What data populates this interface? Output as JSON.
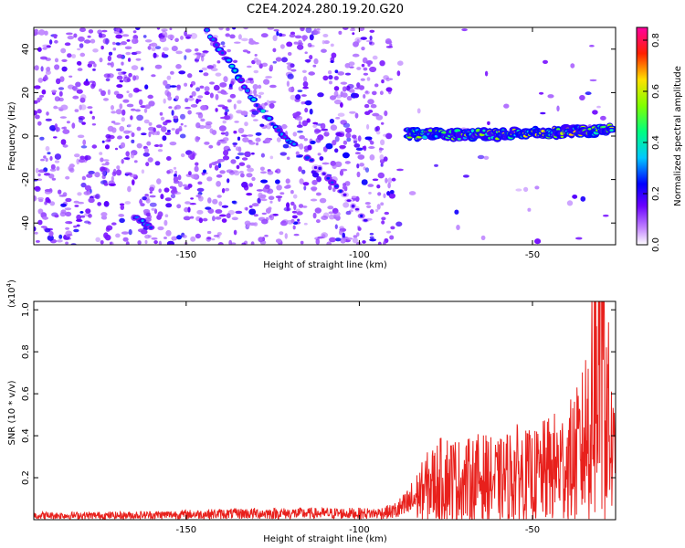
{
  "title": "C2E4.2024.280.19.20.G20",
  "chart_data": [
    {
      "type": "heatmap",
      "panel": "spectrogram",
      "xlabel": "Height of straight line (km)",
      "ylabel": "Frequency (Hz)",
      "xlim": [
        -194,
        -26
      ],
      "ylim": [
        -50,
        50
      ],
      "x_ticks": [
        -150,
        -100,
        -50
      ],
      "y_ticks": [
        -40,
        -20,
        0,
        20,
        40
      ],
      "colorbar": {
        "label": "Normalized spectral amplitude",
        "range": [
          0,
          0.85
        ],
        "ticks": [
          "0.0",
          "0.2",
          "0.4",
          "0.6",
          "0.8"
        ],
        "colormap": [
          "#ffffff",
          "#8000ff",
          "#0000ff",
          "#00ffff",
          "#00ff00",
          "#ffff00",
          "#ff0000",
          "#ff00ff"
        ]
      },
      "features": {
        "descending_branch": {
          "x": [
            -144,
            -138,
            -130,
            -122,
            -118
          ],
          "y": [
            48,
            35,
            15,
            0,
            -5
          ]
        },
        "lower_branch": {
          "x": [
            -165,
            -160
          ],
          "y": [
            -37,
            -42
          ]
        },
        "descending_tail": {
          "x": [
            -115,
            -107,
            -100,
            -97
          ],
          "y": [
            -10,
            -22,
            -35,
            -40
          ]
        },
        "strong_trace": {
          "x": [
            -86,
            -70,
            -55,
            -40,
            -27
          ],
          "y": [
            1,
            0.5,
            1,
            2,
            3
          ]
        },
        "noise_edge_x": -90
      }
    },
    {
      "type": "line",
      "panel": "snr",
      "xlabel": "Height of straight line (km)",
      "ylabel": "SNR (10 * v/v)",
      "scale_label": "(x10",
      "scale_exponent": "4",
      "xlim": [
        -194,
        -26
      ],
      "ylim": [
        0,
        1.04
      ],
      "x_ticks": [
        -150,
        -100,
        -50
      ],
      "y_ticks": [
        "0.2",
        "0.4",
        "0.6",
        "0.8",
        "1.0"
      ],
      "color": "#e8201c",
      "series": [
        {
          "x": [
            -194,
            -170,
            -150,
            -130,
            -110,
            -95,
            -90,
            -87,
            -84,
            -80,
            -75,
            -70,
            -65,
            -60,
            -55,
            -50,
            -45,
            -40,
            -36,
            -33,
            -31,
            -29,
            -27,
            -26
          ],
          "y": [
            0.02,
            0.02,
            0.025,
            0.03,
            0.03,
            0.03,
            0.04,
            0.06,
            0.1,
            0.16,
            0.2,
            0.18,
            0.2,
            0.18,
            0.22,
            0.2,
            0.24,
            0.26,
            0.32,
            0.5,
            0.85,
            0.6,
            0.3,
            0.25
          ]
        }
      ]
    }
  ]
}
